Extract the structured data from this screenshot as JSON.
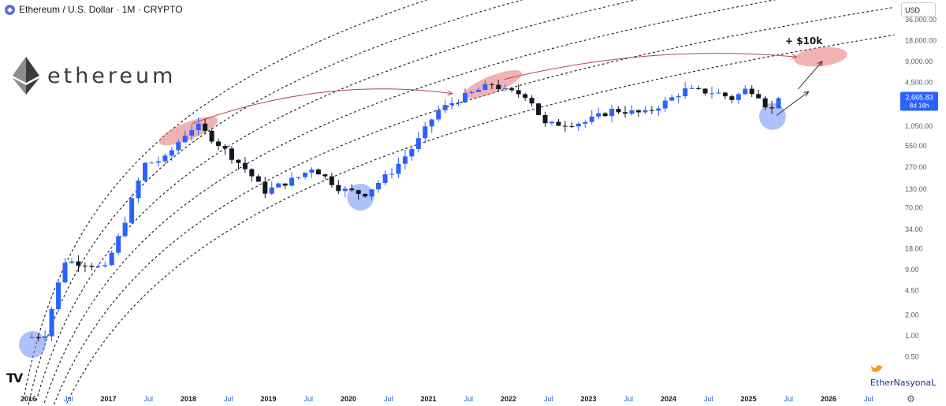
{
  "header": {
    "title": "Ethereum / U.S. Dollar · 1M · CRYPTO",
    "coin_icon": "ethereum-icon"
  },
  "currency_selector": "USD",
  "brand": {
    "name": "ethereum",
    "logo_icon": "ethereum-diamond-icon"
  },
  "annotation": {
    "label": "+ $10k"
  },
  "price_tag": {
    "price": "2,665.83",
    "countdown": "8d 16h"
  },
  "footer": {
    "watermark": "EtherNasyonaL",
    "watermark_icon": "bird-icon",
    "tv_logo": "TV",
    "settings_icon": "gear-icon"
  },
  "colors": {
    "up": "#2962ff",
    "down": "#131722",
    "highlight_red": "#e57373",
    "highlight_blue": "#6c8ef5",
    "price_tag": "#2962ff"
  },
  "chart_data": {
    "type": "candlestick",
    "scale": "log",
    "y_ticks": [
      "36,000.00",
      "18,000.00",
      "9,000.00",
      "4,500.00",
      "1,050.00",
      "550.00",
      "270.00",
      "130.00",
      "70.00",
      "34.00",
      "18.00",
      "9.00",
      "4.50",
      "2.00",
      "1.00",
      "0.50"
    ],
    "x_ticks": [
      "2016",
      "Jul",
      "2017",
      "Jul",
      "2018",
      "Jul",
      "2019",
      "Jul",
      "2020",
      "Jul",
      "2021",
      "Jul",
      "2022",
      "Jul",
      "2023",
      "Jul",
      "2024",
      "Jul",
      "2025",
      "Jul",
      "2026",
      "Jul"
    ],
    "anchors": [
      [
        2016.0,
        0.95
      ],
      [
        2016.2,
        1.0
      ],
      [
        2016.45,
        12
      ],
      [
        2016.75,
        11
      ],
      [
        2016.95,
        9
      ],
      [
        2017.15,
        30
      ],
      [
        2017.45,
        300
      ],
      [
        2017.7,
        350
      ],
      [
        2017.95,
        800
      ],
      [
        2018.1,
        1100
      ],
      [
        2018.4,
        550
      ],
      [
        2018.75,
        230
      ],
      [
        2018.95,
        120
      ],
      [
        2019.4,
        200
      ],
      [
        2019.55,
        270
      ],
      [
        2019.9,
        130
      ],
      [
        2020.2,
        110
      ],
      [
        2020.55,
        240
      ],
      [
        2020.85,
        600
      ],
      [
        2021.1,
        1700
      ],
      [
        2021.35,
        2500
      ],
      [
        2021.8,
        4300
      ],
      [
        2021.95,
        3400
      ],
      [
        2022.25,
        2900
      ],
      [
        2022.45,
        1100
      ],
      [
        2022.95,
        1200
      ],
      [
        2023.3,
        1800
      ],
      [
        2023.7,
        1600
      ],
      [
        2023.95,
        2300
      ],
      [
        2024.2,
        3500
      ],
      [
        2024.6,
        3200
      ],
      [
        2024.8,
        2600
      ],
      [
        2024.97,
        3600
      ],
      [
        2025.1,
        3300
      ],
      [
        2025.2,
        2200
      ],
      [
        2025.3,
        1800
      ],
      [
        2025.38,
        2665.83
      ]
    ],
    "last_price": 2665.83,
    "channel": {
      "description": "log-curve dotted channel lines, each a multiple of the central fit",
      "multipliers": [
        0.22,
        0.55,
        1.4,
        3.6,
        9.2,
        24
      ]
    },
    "highlights": [
      {
        "kind": "peak",
        "x": 2018.0,
        "y": 900
      },
      {
        "kind": "peak",
        "x": 2021.8,
        "y": 4200
      },
      {
        "kind": "target",
        "x": 2025.9,
        "y": 10500
      },
      {
        "kind": "bottom",
        "x": 2016.05,
        "y": 0.75
      },
      {
        "kind": "bottom",
        "x": 2020.15,
        "y": 100
      },
      {
        "kind": "bottom",
        "x": 2025.3,
        "y": 1450
      }
    ]
  }
}
